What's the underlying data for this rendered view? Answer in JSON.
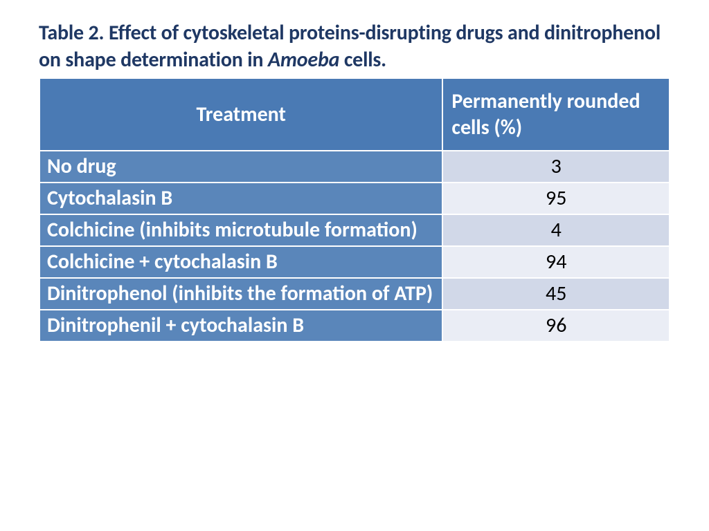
{
  "title": {
    "prefix": "Table 2. Effect of cytoskeletal proteins-disrupting drugs and dinitrophenol on shape determination in ",
    "italic": "Amoeba",
    "suffix": " cells.",
    "color": "#1f3864",
    "fontsize_pt": 24,
    "font_weight": 700
  },
  "table": {
    "type": "table",
    "header_bg": "#4a7ab4",
    "header_fg": "#ffffff",
    "treatment_bg": "#5a86ba",
    "treatment_fg": "#ffffff",
    "value_bg_odd": "#d1d8e8",
    "value_bg_even": "#eaedf5",
    "value_fg": "#000000",
    "border_color": "#ffffff",
    "fontsize_pt": 24,
    "col_widths_pct": [
      64,
      36
    ],
    "columns": [
      "Treatment",
      "Permanently rounded cells (%)"
    ],
    "rows": [
      {
        "treatment": "No drug",
        "value": 3
      },
      {
        "treatment": "Cytochalasin B",
        "value": 95
      },
      {
        "treatment": "Colchicine (inhibits microtubule formation)",
        "value": 4
      },
      {
        "treatment": "Colchicine + cytochalasin B",
        "value": 94
      },
      {
        "treatment": "Dinitrophenol (inhibits the formation of ATP)",
        "value": 45
      },
      {
        "treatment": "Dinitrophenil + cytochalasin B",
        "value": 96
      }
    ]
  }
}
